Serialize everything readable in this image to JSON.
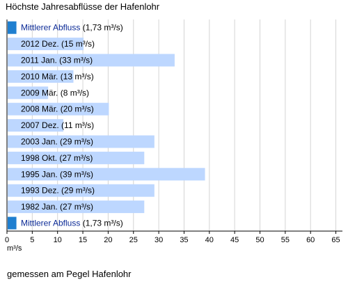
{
  "chart_data": {
    "type": "bar",
    "orientation": "horizontal",
    "title": "Höchste Jahresabflüsse der Hafenlohr",
    "unit_label": "m³/s",
    "note": "gemessen am Pegel Hafenlohr",
    "xlim": [
      0,
      66
    ],
    "xticks": [
      0,
      5,
      10,
      15,
      20,
      25,
      30,
      35,
      40,
      45,
      50,
      55,
      60,
      65
    ],
    "grid": true,
    "mean": {
      "link_text": "Mittlerer Abfluss",
      "value_text": "(1,73 m³/s)",
      "value": 1.73,
      "color": "#1f7fd0"
    },
    "bar_color": "#bdd7ff",
    "categories": [
      "2012 Dez. (15 m³/s)",
      "2011 Jan. (33 m³/s)",
      "2010 Mär. (13 m³/s)",
      "2009 Mär. (8 m³/s)",
      "2008 Mär. (20 m³/s)",
      "2007 Dez. (11 m³/s)",
      "2003 Jan. (29 m³/s)",
      "1998 Okt. (27 m³/s)",
      "1995 Jan. (39 m³/s)",
      "1993 Dez. (29 m³/s)",
      "1982 Jan. (27 m³/s)"
    ],
    "values": [
      15,
      33,
      13,
      8,
      20,
      11,
      29,
      27,
      39,
      29,
      27
    ]
  }
}
